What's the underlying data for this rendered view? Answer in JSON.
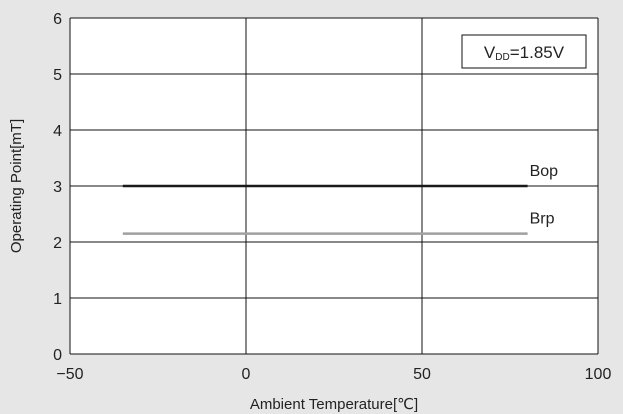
{
  "chart_data": {
    "type": "line",
    "xlabel": "Ambient Temperature[℃]",
    "ylabel": "Operating Point[mT]",
    "xlim": [
      -50,
      100
    ],
    "ylim": [
      0,
      6
    ],
    "xticks": [
      "−50",
      "0",
      "50",
      "100"
    ],
    "yticks": [
      "0",
      "1",
      "2",
      "3",
      "4",
      "5",
      "6"
    ],
    "grid": true,
    "annotation": {
      "prefix": "V",
      "sub": "DD",
      "suffix": "=1.85V",
      "position": "top-right"
    },
    "series": [
      {
        "name": "Bop",
        "x": [
          -35,
          80
        ],
        "y": [
          3.0,
          3.0
        ],
        "color": "#1a1a1a"
      },
      {
        "name": "Brp",
        "x": [
          -35,
          80
        ],
        "y": [
          2.15,
          2.15
        ],
        "color": "#a0a0a0"
      }
    ]
  },
  "colors": {
    "background": "#e6e6e6",
    "plot_area": "#ffffff",
    "grid": "#111111"
  }
}
